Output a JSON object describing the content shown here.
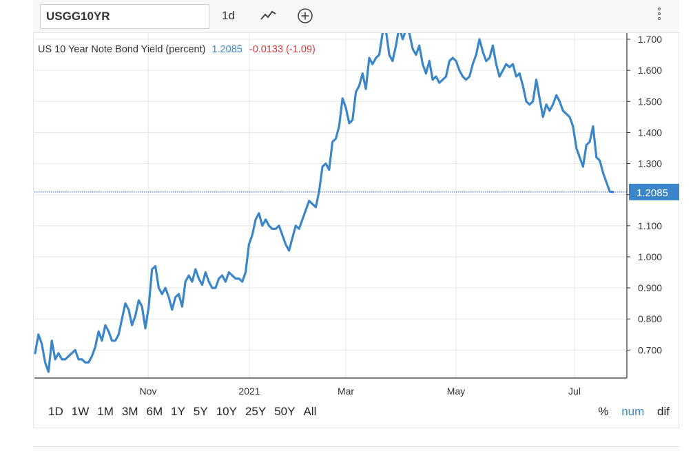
{
  "toolbar": {
    "symbol": "USGG10YR",
    "interval": "1d",
    "chart_type_icon": "line-chart-icon",
    "add_icon": "plus-circle-icon",
    "menu_icon": "kebab-menu-icon"
  },
  "legend": {
    "name": "US 10 Year Note Bond Yield (percent)",
    "last": "1.2085",
    "change": "-0.0133 (-1.09)"
  },
  "ranges": [
    "1D",
    "1W",
    "1M",
    "3M",
    "6M",
    "1Y",
    "5Y",
    "10Y",
    "25Y",
    "50Y",
    "All"
  ],
  "modes": {
    "percent": "%",
    "num": "num",
    "dif": "dif"
  },
  "colors": {
    "line": "#3a86c8",
    "negative": "#d9383a",
    "accent": "#3a86c8",
    "grid": "#e6e6e6"
  },
  "chart_data": {
    "type": "line",
    "title": "US 10 Year Note Bond Yield (percent)",
    "xlabel": "",
    "ylabel": "",
    "x_ticks": [
      "Nov",
      "2021",
      "Mar",
      "May",
      "Jul"
    ],
    "y_ticks": [
      "0.700",
      "0.800",
      "0.900",
      "1.000",
      "1.100",
      "1.200",
      "1.300",
      "1.400",
      "1.500",
      "1.600",
      "1.700"
    ],
    "ylim": [
      0.61,
      1.72
    ],
    "last_value": "1.2085",
    "grid": true,
    "series": [
      {
        "name": "US 10 Year Note Bond Yield (percent)",
        "values": [
          0.69,
          0.75,
          0.72,
          0.66,
          0.63,
          0.73,
          0.67,
          0.69,
          0.67,
          0.67,
          0.68,
          0.69,
          0.7,
          0.67,
          0.67,
          0.66,
          0.66,
          0.68,
          0.71,
          0.76,
          0.73,
          0.78,
          0.76,
          0.73,
          0.73,
          0.75,
          0.8,
          0.85,
          0.83,
          0.78,
          0.81,
          0.86,
          0.84,
          0.77,
          0.84,
          0.96,
          0.97,
          0.9,
          0.88,
          0.9,
          0.87,
          0.83,
          0.87,
          0.88,
          0.84,
          0.92,
          0.94,
          0.92,
          0.96,
          0.93,
          0.91,
          0.95,
          0.92,
          0.9,
          0.9,
          0.93,
          0.94,
          0.92,
          0.95,
          0.94,
          0.93,
          0.93,
          0.92,
          0.95,
          1.04,
          1.07,
          1.12,
          1.14,
          1.1,
          1.12,
          1.1,
          1.09,
          1.09,
          1.1,
          1.07,
          1.04,
          1.02,
          1.06,
          1.1,
          1.09,
          1.12,
          1.15,
          1.18,
          1.17,
          1.16,
          1.21,
          1.29,
          1.3,
          1.28,
          1.37,
          1.38,
          1.42,
          1.51,
          1.48,
          1.43,
          1.44,
          1.53,
          1.55,
          1.59,
          1.54,
          1.64,
          1.62,
          1.64,
          1.65,
          1.72,
          1.73,
          1.65,
          1.63,
          1.68,
          1.74,
          1.7,
          1.73,
          1.72,
          1.67,
          1.65,
          1.68,
          1.62,
          1.59,
          1.63,
          1.57,
          1.58,
          1.56,
          1.57,
          1.58,
          1.63,
          1.64,
          1.63,
          1.6,
          1.58,
          1.57,
          1.58,
          1.62,
          1.65,
          1.7,
          1.66,
          1.63,
          1.64,
          1.68,
          1.62,
          1.58,
          1.6,
          1.62,
          1.61,
          1.62,
          1.58,
          1.59,
          1.55,
          1.5,
          1.49,
          1.5,
          1.57,
          1.51,
          1.45,
          1.49,
          1.47,
          1.49,
          1.52,
          1.5,
          1.47,
          1.46,
          1.45,
          1.42,
          1.35,
          1.32,
          1.29,
          1.36,
          1.37,
          1.42,
          1.32,
          1.31,
          1.27,
          1.24,
          1.21,
          1.2085
        ]
      }
    ]
  }
}
